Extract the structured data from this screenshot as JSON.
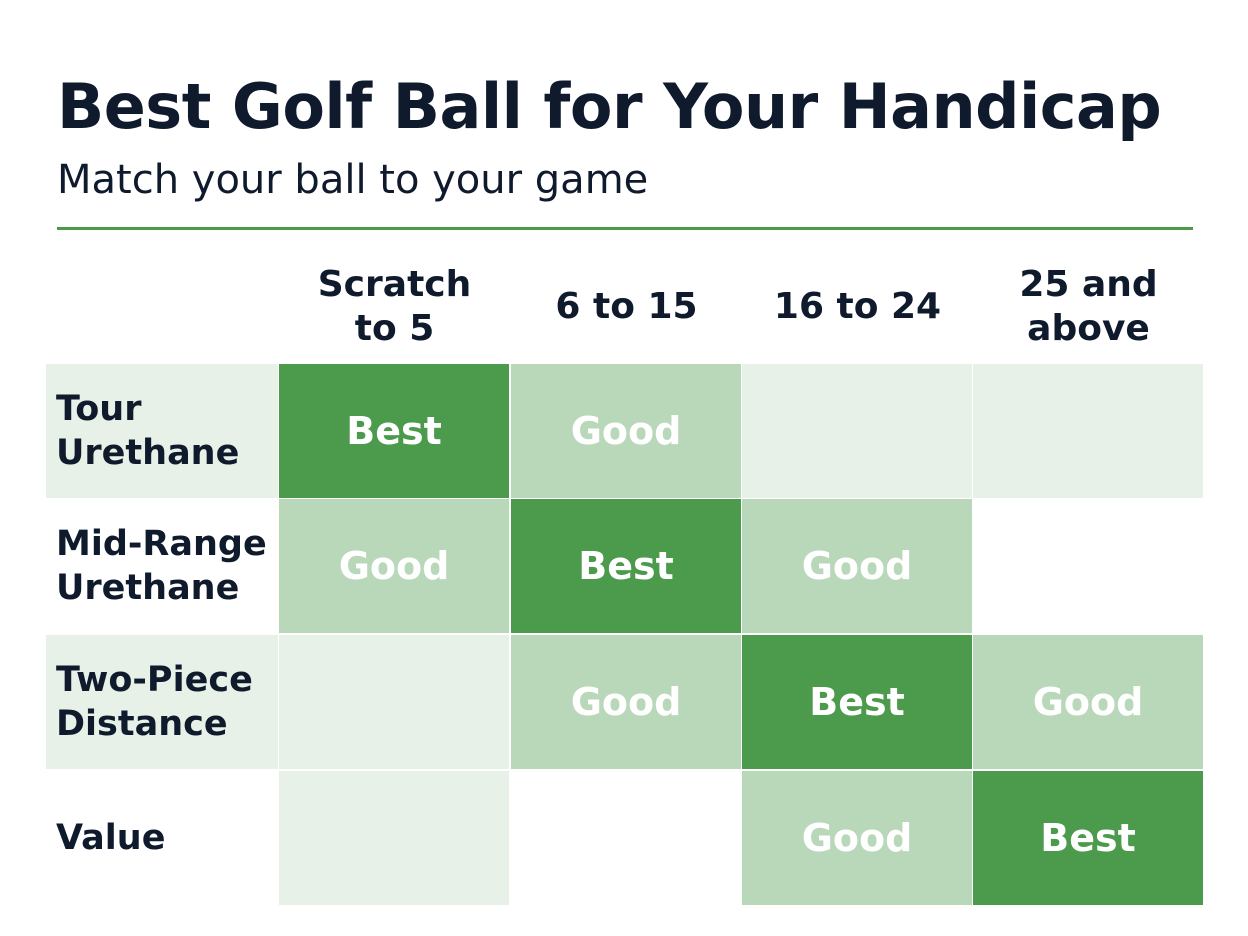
{
  "title": "Best Golf Ball for Your Handicap",
  "subtitle": "Match your ball to your game",
  "colors": {
    "best": "#4c9a4c",
    "good": "#b9d8b9",
    "neutral": "#e7f1e7",
    "none": "#ffffff",
    "rule": "#4a9a4a",
    "text": "#0f1b2d"
  },
  "chart_data": {
    "type": "table",
    "columns": [
      "Scratch to 5",
      "6 to 15",
      "16 to 24",
      "25 and above"
    ],
    "rows": [
      {
        "label": "Tour Urethane",
        "cells": [
          "Best",
          "Good",
          "",
          ""
        ],
        "levels": [
          "best",
          "good",
          "neutral",
          "neutral"
        ],
        "label_bg": "neutral"
      },
      {
        "label": "Mid-Range Urethane",
        "cells": [
          "Good",
          "Best",
          "Good",
          ""
        ],
        "levels": [
          "good",
          "best",
          "good",
          "none"
        ],
        "label_bg": "none"
      },
      {
        "label": "Two-Piece Distance",
        "cells": [
          "",
          "Good",
          "Best",
          "Good"
        ],
        "levels": [
          "neutral",
          "good",
          "best",
          "good"
        ],
        "label_bg": "neutral"
      },
      {
        "label": "Value",
        "cells": [
          "",
          "",
          "Good",
          "Best"
        ],
        "levels": [
          "neutral",
          "none",
          "good",
          "best"
        ],
        "label_bg": "none"
      }
    ]
  }
}
